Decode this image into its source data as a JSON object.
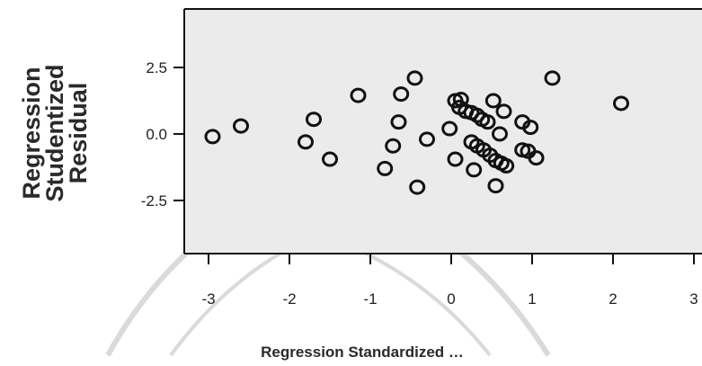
{
  "chart_data": {
    "type": "scatter",
    "xlabel": "Regression Standardized …",
    "ylabel_lines": [
      "Regression",
      "Studentized",
      "Residual"
    ],
    "xlim": [
      -3.3,
      3.1
    ],
    "ylim": [
      -4.5,
      4.7
    ],
    "x_ticks": [
      -3,
      -2,
      -1,
      0,
      1,
      2,
      3
    ],
    "x_tick_labels": [
      "-3",
      "-2",
      "-1",
      "0",
      "1",
      "2",
      "3"
    ],
    "y_ticks": [
      2.5,
      0.0,
      -2.5
    ],
    "y_tick_labels": [
      "2.5",
      "0.0",
      "-2.5"
    ],
    "grid": false,
    "legend": "none",
    "colors": {
      "plot_bg": "#ebebeb",
      "marker": "#111111",
      "axis": "#111111",
      "watermark": "#d9d9d9"
    },
    "points": [
      {
        "x": -2.95,
        "y": -0.1
      },
      {
        "x": -2.6,
        "y": 0.3
      },
      {
        "x": -1.7,
        "y": 0.55
      },
      {
        "x": -1.8,
        "y": -0.3
      },
      {
        "x": -1.5,
        "y": -0.95
      },
      {
        "x": -1.15,
        "y": 1.45
      },
      {
        "x": -0.82,
        "y": -1.3
      },
      {
        "x": -0.72,
        "y": -0.45
      },
      {
        "x": -0.65,
        "y": 0.45
      },
      {
        "x": -0.62,
        "y": 1.5
      },
      {
        "x": -0.45,
        "y": 2.1
      },
      {
        "x": -0.42,
        "y": -2.0
      },
      {
        "x": -0.3,
        "y": -0.2
      },
      {
        "x": -0.02,
        "y": 0.2
      },
      {
        "x": 0.05,
        "y": 1.25
      },
      {
        "x": 0.12,
        "y": 1.3
      },
      {
        "x": 0.1,
        "y": 1.0
      },
      {
        "x": 0.18,
        "y": 0.85
      },
      {
        "x": 0.25,
        "y": 0.8
      },
      {
        "x": 0.32,
        "y": 0.7
      },
      {
        "x": 0.38,
        "y": 0.55
      },
      {
        "x": 0.45,
        "y": 0.45
      },
      {
        "x": 0.52,
        "y": 1.25
      },
      {
        "x": 0.65,
        "y": 0.85
      },
      {
        "x": 0.6,
        "y": 0.0
      },
      {
        "x": 0.88,
        "y": 0.45
      },
      {
        "x": 0.98,
        "y": 0.25
      },
      {
        "x": 1.25,
        "y": 2.1
      },
      {
        "x": 2.1,
        "y": 1.15
      },
      {
        "x": 0.05,
        "y": -0.95
      },
      {
        "x": 0.25,
        "y": -0.3
      },
      {
        "x": 0.32,
        "y": -0.45
      },
      {
        "x": 0.4,
        "y": -0.6
      },
      {
        "x": 0.48,
        "y": -0.8
      },
      {
        "x": 0.55,
        "y": -1.0
      },
      {
        "x": 0.62,
        "y": -1.1
      },
      {
        "x": 0.68,
        "y": -1.2
      },
      {
        "x": 0.28,
        "y": -1.35
      },
      {
        "x": 0.55,
        "y": -1.95
      },
      {
        "x": 0.88,
        "y": -0.6
      },
      {
        "x": 0.95,
        "y": -0.65
      },
      {
        "x": 1.05,
        "y": -0.9
      }
    ]
  }
}
